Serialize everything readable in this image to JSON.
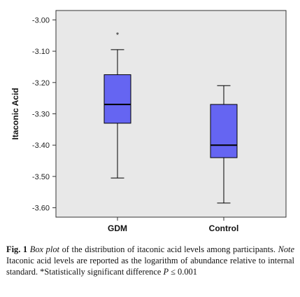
{
  "chart_data": {
    "type": "box",
    "ylabel": "Itaconic Acid",
    "ylim": [
      -3.63,
      -2.97
    ],
    "yticks": [
      -3.0,
      -3.1,
      -3.2,
      -3.3,
      -3.4,
      -3.5,
      -3.6
    ],
    "ytick_labels": [
      "-3.00",
      "-3.10",
      "-3.20",
      "-3.30",
      "-3.40",
      "-3.50",
      "-3.60"
    ],
    "categories": [
      "GDM",
      "Control"
    ],
    "boxes": [
      {
        "category": "GDM",
        "whisker_low": -3.505,
        "q1": -3.33,
        "median": -3.27,
        "q3": -3.175,
        "whisker_high": -3.095,
        "outlier_label": "*",
        "outlier_value": -3.045
      },
      {
        "category": "Control",
        "whisker_low": -3.585,
        "q1": -3.44,
        "median": -3.4,
        "q3": -3.27,
        "whisker_high": -3.21
      }
    ],
    "box_fill": "#6565f2",
    "plot_background": "#e8e8e8",
    "grid": false
  },
  "caption": {
    "label": "Fig. 1",
    "italic_1": "Box plot",
    "text_1": " of the distribution of itaconic acid levels among participants. ",
    "italic_2": "Note",
    "text_2": " Itaconic acid levels are reported as the logarithm of abundance relative to internal standard. *Statistically significant difference ",
    "italic_3": "P",
    "text_3": " ≤ 0.001"
  }
}
